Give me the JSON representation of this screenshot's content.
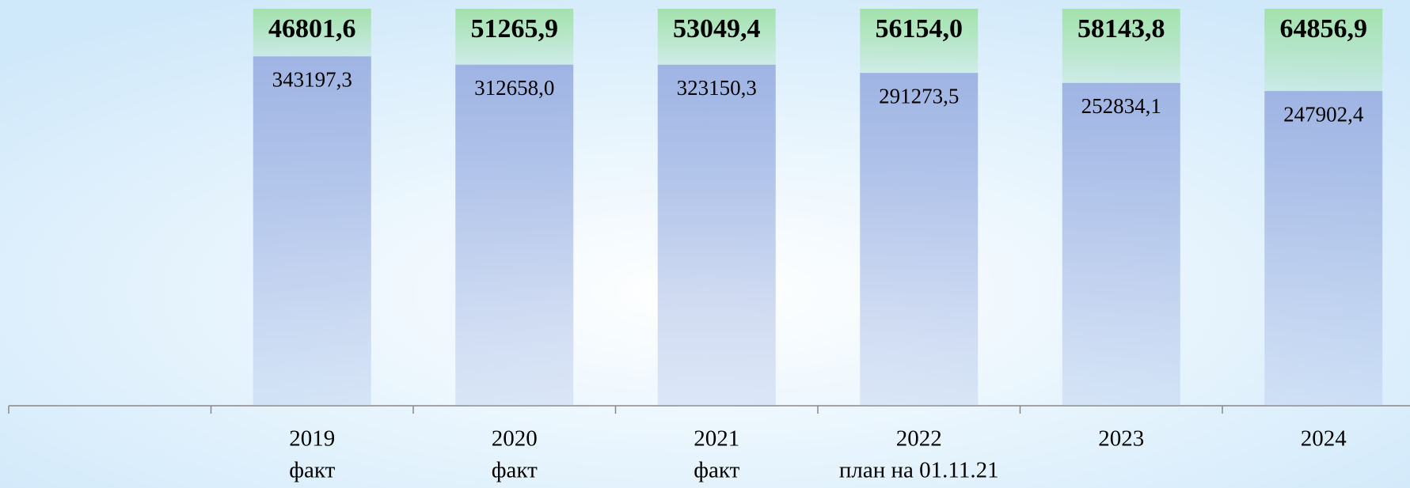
{
  "chart_data": {
    "type": "stacked_percent_bar",
    "categories": [
      null,
      "2019",
      "2020",
      "2021",
      "2022",
      "2023",
      "2024"
    ],
    "category_notes": [
      null,
      "факт",
      "факт",
      "факт",
      "план на 01.11.21",
      null,
      null
    ],
    "series": [
      {
        "color": "#9fb4e3",
        "values": [
          null,
          343197.3,
          312658.0,
          323150.3,
          291273.5,
          252834.1,
          247902.4
        ],
        "value_labels": [
          null,
          "343197,3",
          "312658,0",
          "323150,3",
          "291273,5",
          "252834,1",
          "247902,4"
        ]
      },
      {
        "color": "#a3e2ab",
        "values": [
          null,
          46801.6,
          51265.9,
          53049.4,
          56154.0,
          58143.8,
          64856.9
        ],
        "value_labels": [
          null,
          "46801,6",
          "51265,9",
          "53049,4",
          "56154,0",
          "58143,8",
          "64856,9"
        ]
      }
    ]
  }
}
